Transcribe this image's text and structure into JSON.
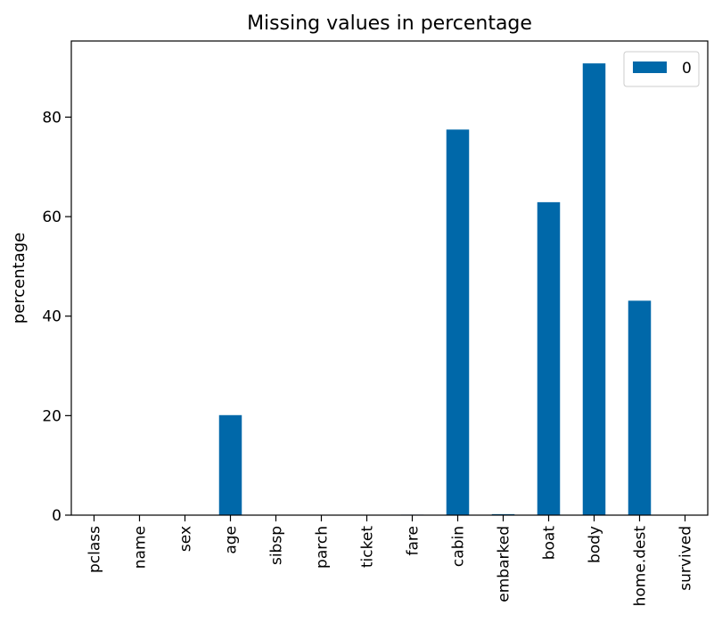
{
  "chart_data": {
    "type": "bar",
    "title": "Missing values in percentage",
    "xlabel": "",
    "ylabel": "percentage",
    "categories": [
      "pclass",
      "name",
      "sex",
      "age",
      "sibsp",
      "parch",
      "ticket",
      "fare",
      "cabin",
      "embarked",
      "boat",
      "body",
      "home.dest",
      "survived"
    ],
    "series": [
      {
        "name": "0",
        "color": "#0068a9",
        "values": [
          0,
          0,
          0,
          20.1,
          0,
          0,
          0,
          0.1,
          77.5,
          0.2,
          62.9,
          90.8,
          43.1,
          0
        ]
      }
    ],
    "ylim": [
      0,
      95.3
    ],
    "yticks": [
      0,
      20,
      40,
      60,
      80
    ],
    "grid": false,
    "legend": "top-right"
  }
}
